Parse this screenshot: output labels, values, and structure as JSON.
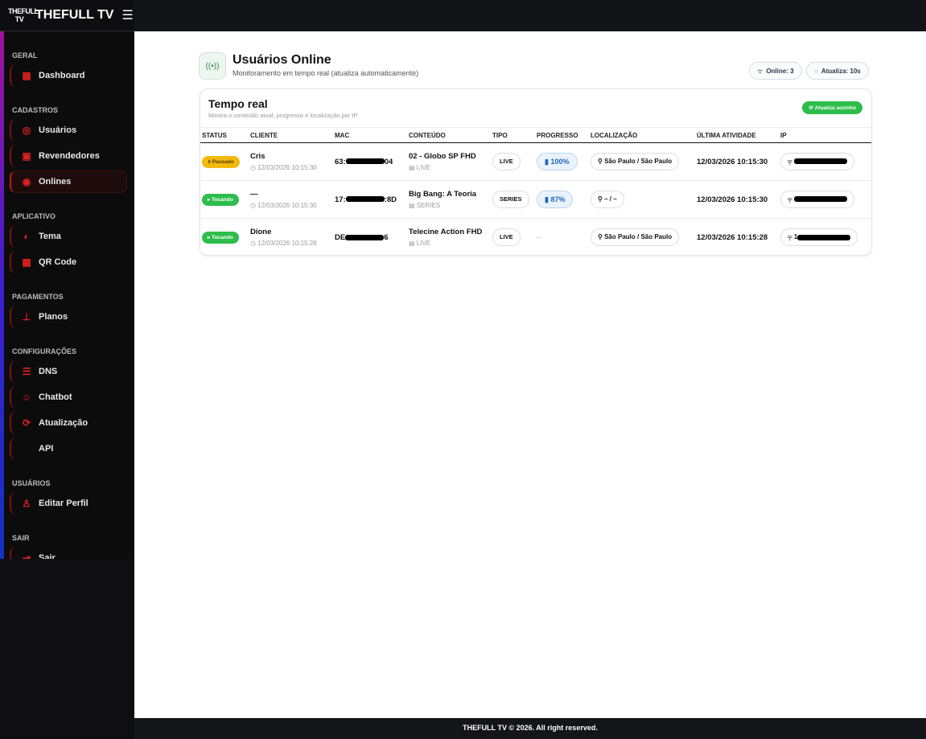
{
  "brand": {
    "logo": "THEFULL TV",
    "name": "THEFULL TV"
  },
  "sidebar": [
    {
      "section": "GERAL",
      "items": [
        {
          "label": "Dashboard",
          "icon": "dashboard-icon",
          "glyph": "▦"
        }
      ]
    },
    {
      "section": "CADASTROS",
      "items": [
        {
          "label": "Usuários",
          "icon": "user-circle-icon",
          "glyph": "◎"
        },
        {
          "label": "Revendedores",
          "icon": "contact-card-icon",
          "glyph": "▣"
        },
        {
          "label": "Onlines",
          "icon": "user-circle-icon",
          "glyph": "◉",
          "active": true
        }
      ]
    },
    {
      "section": "APLICATIVO",
      "items": [
        {
          "label": "Tema",
          "icon": "palette-icon",
          "glyph": "◐"
        },
        {
          "label": "QR Code",
          "icon": "qr-code-icon",
          "glyph": "▩"
        }
      ]
    },
    {
      "section": "PAGAMENTOS",
      "items": [
        {
          "label": "Planos",
          "icon": "sitemap-icon",
          "glyph": "⊥"
        }
      ]
    },
    {
      "section": "CONFIGURAÇÕES",
      "items": [
        {
          "label": "DNS",
          "icon": "server-icon",
          "glyph": "☰"
        },
        {
          "label": "Chatbot",
          "icon": "robot-icon",
          "glyph": "☺"
        },
        {
          "label": "Atualização",
          "icon": "refresh-icon",
          "glyph": "⟳"
        },
        {
          "label": "API",
          "icon": "code-icon",
          "glyph": "</>"
        }
      ]
    },
    {
      "section": "USUÁRIOS",
      "items": [
        {
          "label": "Editar Perfil",
          "icon": "user-icon",
          "glyph": "♙"
        }
      ]
    },
    {
      "section": "SAIR",
      "items": [
        {
          "label": "Sair",
          "icon": "logout-icon",
          "glyph": "⇥"
        }
      ]
    }
  ],
  "header": {
    "title": "Usuários Online",
    "subtitle": "Monitoramento em tempo real (atualiza automaticamente)",
    "online": "Online: 3",
    "refresh": "Atualiza: 10s"
  },
  "card": {
    "title": "Tempo real",
    "subtitle": "Mostra o conteúdo atual, progresso e localização por IP",
    "auto_button": "Atualiza sozinho"
  },
  "columns": [
    "STATUS",
    "CLIENTE",
    "MAC",
    "CONTEÚDO",
    "TIPO",
    "PROGRESSO",
    "LOCALIZAÇÃO",
    "ÚLTIMA ATIVIDADE",
    "IP"
  ],
  "rows": [
    {
      "status": "Pausado",
      "status_type": "paused",
      "client": "Cris",
      "time": "12/03/2026 10:15:30",
      "mac_prefix": "63:",
      "mac_suffix": "04",
      "content": "02 - Globo SP FHD",
      "content_type": "LIVE",
      "type": "LIVE",
      "progress": "100%",
      "location": "São Paulo / São Paulo",
      "last": "12/03/2026 10:15:30",
      "ip_prefix": ""
    },
    {
      "status": "Tocando",
      "status_type": "playing",
      "client": "—",
      "time": "12/03/2026 10:15:30",
      "mac_prefix": "17:",
      "mac_suffix": ":8D",
      "content": "Big Bang: A Teoria",
      "content_type": "SERIES",
      "type": "SERIES",
      "progress": "87%",
      "location": "– / –",
      "last": "12/03/2026 10:15:30",
      "ip_prefix": ""
    },
    {
      "status": "Tocando",
      "status_type": "playing",
      "client": "Dione",
      "time": "12/03/2026 10:15:28",
      "mac_prefix": "DE",
      "mac_suffix": "6",
      "content": "Telecine Action FHD",
      "content_type": "LIVE",
      "type": "LIVE",
      "progress": "–",
      "location": "São Paulo / São Paulo",
      "last": "12/03/2026 10:15:28",
      "ip_prefix": "1"
    }
  ],
  "footer": "THEFULL TV © 2026. All right reserved."
}
